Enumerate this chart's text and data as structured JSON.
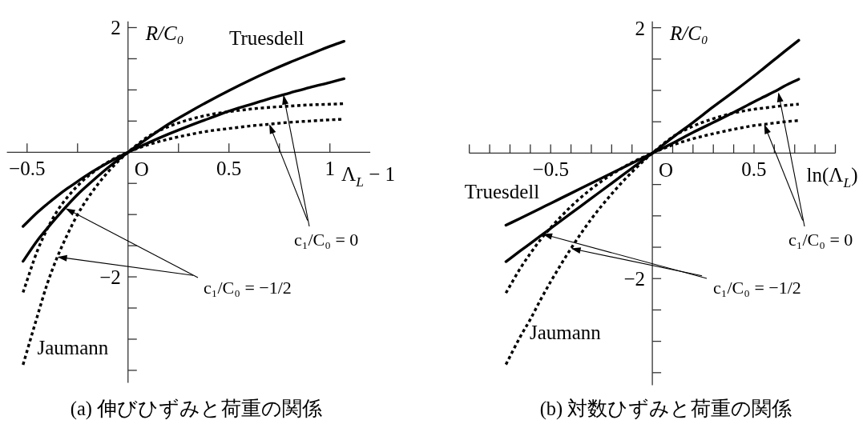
{
  "chart_data": [
    {
      "type": "line",
      "title": "(a) 伸びひずみと荷重の関係",
      "xlabel": "Λ$_{L}$ − 1",
      "ylabel": "R/C₀",
      "x": [
        -0.52,
        -0.45,
        -0.4,
        -0.35,
        -0.3,
        -0.25,
        -0.2,
        -0.1,
        0,
        0.1,
        0.2,
        0.3,
        0.4,
        0.5,
        0.6,
        0.7,
        0.8,
        0.9,
        1.0,
        1.07
      ],
      "xlim": [
        -0.6,
        1.2
      ],
      "xticks": [
        {
          "value": -0.5,
          "label": "−0.5"
        },
        {
          "value": -0.25,
          "label": null
        },
        {
          "value": 0.25,
          "label": null
        },
        {
          "value": 0.5,
          "label": "0.5"
        },
        {
          "value": 0.75,
          "label": null
        },
        {
          "value": 1,
          "label": "1"
        }
      ],
      "ylim": [
        -3.7,
        2.1
      ],
      "yticks": [
        {
          "value": 2,
          "label": "2"
        },
        {
          "value": 1.5,
          "label": null
        },
        {
          "value": 1,
          "label": null
        },
        {
          "value": 0.5,
          "label": null
        },
        {
          "value": -0.5,
          "label": null
        },
        {
          "value": -1,
          "label": null
        },
        {
          "value": -1.5,
          "label": null
        },
        {
          "value": -2,
          "label": "−2"
        },
        {
          "value": -2.5,
          "label": null
        },
        {
          "value": -3,
          "label": null
        },
        {
          "value": -3.5,
          "label": null
        }
      ],
      "series": [
        {
          "color": "#000000",
          "line_style": "solid",
          "values": [
            -1.19,
            -0.97,
            -0.83,
            -0.7,
            -0.58,
            -0.47,
            -0.36,
            -0.17,
            0,
            0.15,
            0.29,
            0.42,
            0.54,
            0.66,
            0.76,
            0.86,
            0.95,
            1.04,
            1.12,
            1.18
          ]
        },
        {
          "color": "#000000",
          "line_style": "solid",
          "values": [
            -1.75,
            -1.42,
            -1.22,
            -1.03,
            -0.85,
            -0.68,
            -0.53,
            -0.25,
            0,
            0.23,
            0.45,
            0.64,
            0.82,
            0.99,
            1.15,
            1.3,
            1.44,
            1.57,
            1.7,
            1.78
          ]
        },
        {
          "color": "#000000",
          "line_style": "dotted",
          "values": [
            -2.25,
            -1.59,
            -1.23,
            -0.94,
            -0.72,
            -0.54,
            -0.39,
            -0.16,
            0,
            0.12,
            0.21,
            0.28,
            0.34,
            0.38,
            0.42,
            0.45,
            0.48,
            0.5,
            0.52,
            0.53
          ]
        },
        {
          "color": "#000000",
          "line_style": "dotted",
          "values": [
            -3.41,
            -2.64,
            -2.11,
            -1.68,
            -1.32,
            -1.0,
            -0.74,
            -0.32,
            0,
            0.25,
            0.41,
            0.52,
            0.6,
            0.65,
            0.69,
            0.72,
            0.74,
            0.76,
            0.77,
            0.78
          ]
        }
      ],
      "annotations": [
        {
          "text": "O",
          "x": 0,
          "y": 0
        },
        "Truesdell",
        "Jaumann",
        {
          "text": "c₁/C₀ = 0",
          "x": 0.77,
          "y": 0.92
        },
        {
          "text": "c₁/C₀ = −1/2",
          "x": -0.31,
          "y": -0.9
        }
      ]
    },
    {
      "type": "line",
      "title": "(b) 対数ひずみと荷重の関係",
      "xlabel": "ln(Λ$_{L}$)",
      "ylabel": "R/C₀",
      "x": [
        -0.72,
        -0.65,
        -0.6,
        -0.55,
        -0.5,
        -0.4,
        -0.3,
        -0.2,
        -0.1,
        0,
        0.1,
        0.2,
        0.3,
        0.4,
        0.5,
        0.55,
        0.6,
        0.65,
        0.72
      ],
      "xlim": [
        -0.9,
        0.9
      ],
      "xticks": [
        {
          "value": -0.9,
          "label": null
        },
        {
          "value": -0.8,
          "label": null
        },
        {
          "value": -0.7,
          "label": null
        },
        {
          "value": -0.6,
          "label": null
        },
        {
          "value": -0.5,
          "label": "−0.5"
        },
        {
          "value": -0.4,
          "label": null
        },
        {
          "value": -0.3,
          "label": null
        },
        {
          "value": -0.2,
          "label": null
        },
        {
          "value": -0.1,
          "label": null
        },
        {
          "value": 0.1,
          "label": null
        },
        {
          "value": 0.2,
          "label": null
        },
        {
          "value": 0.3,
          "label": null
        },
        {
          "value": 0.4,
          "label": null
        },
        {
          "value": 0.5,
          "label": "0.5"
        },
        {
          "value": 0.6,
          "label": null
        },
        {
          "value": 0.7,
          "label": null
        },
        {
          "value": 0.8,
          "label": null
        },
        {
          "value": 0.9,
          "label": null
        }
      ],
      "ylim": [
        -3.7,
        2.1
      ],
      "yticks": [
        {
          "value": 2,
          "label": "2"
        },
        {
          "value": 1.5,
          "label": null
        },
        {
          "value": 1,
          "label": null
        },
        {
          "value": 0.5,
          "label": null
        },
        {
          "value": -0.5,
          "label": null
        },
        {
          "value": -1,
          "label": null
        },
        {
          "value": -1.5,
          "label": null
        },
        {
          "value": -2,
          "label": "−2"
        },
        {
          "value": -2.5,
          "label": null
        },
        {
          "value": -3,
          "label": null
        },
        {
          "value": -3.5,
          "label": null
        }
      ],
      "series": [
        {
          "color": "#000000",
          "line_style": "solid",
          "values": [
            -1.15,
            -1.04,
            -0.96,
            -0.88,
            -0.8,
            -0.64,
            -0.48,
            -0.32,
            -0.16,
            0,
            0.16,
            0.33,
            0.49,
            0.65,
            0.82,
            0.9,
            0.98,
            1.07,
            1.18
          ]
        },
        {
          "color": "#000000",
          "line_style": "solid",
          "values": [
            -1.73,
            -1.56,
            -1.44,
            -1.32,
            -1.2,
            -0.96,
            -0.72,
            -0.48,
            -0.24,
            0,
            0.25,
            0.49,
            0.74,
            0.98,
            1.23,
            1.36,
            1.49,
            1.62,
            1.8
          ]
        },
        {
          "color": "#000000",
          "line_style": "dotted",
          "values": [
            -2.23,
            -1.84,
            -1.6,
            -1.38,
            -1.19,
            -0.85,
            -0.57,
            -0.34,
            -0.15,
            0,
            0.13,
            0.23,
            0.31,
            0.38,
            0.44,
            0.46,
            0.48,
            0.5,
            0.52
          ]
        },
        {
          "color": "#000000",
          "line_style": "dotted",
          "values": [
            -3.37,
            -2.93,
            -2.65,
            -2.34,
            -2.05,
            -1.52,
            -1.05,
            -0.65,
            -0.3,
            0,
            0.26,
            0.43,
            0.55,
            0.64,
            0.7,
            0.72,
            0.74,
            0.76,
            0.78
          ]
        }
      ],
      "annotations": [
        {
          "text": "O",
          "x": 0,
          "y": 0
        },
        "Truesdell",
        "Jaumann",
        {
          "text": "c₁/C₀ = 0",
          "x": 0.62,
          "y": 0.97
        },
        {
          "text": "c₁/C₀ = −1/2",
          "x": -0.54,
          "y": -1.29
        }
      ]
    }
  ]
}
